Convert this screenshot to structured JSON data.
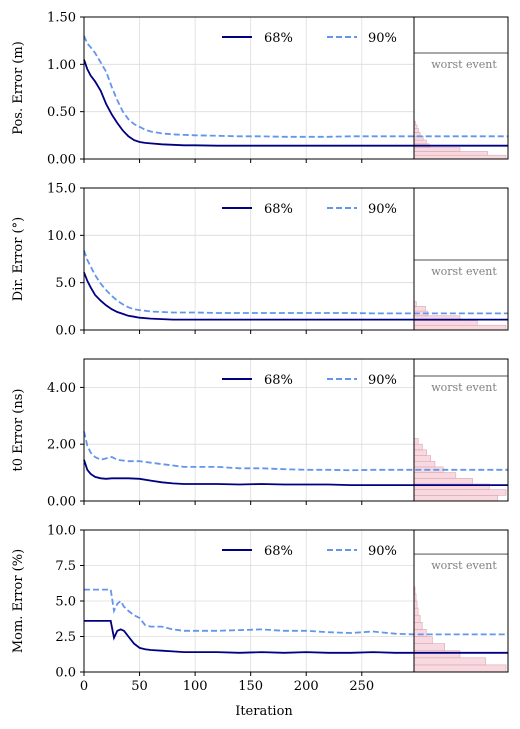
{
  "chart_data": [
    {
      "type": "line",
      "ylabel": "Pos. Error (m)",
      "xlabel": "",
      "xlim": [
        0,
        297
      ],
      "ylim": [
        0,
        1.5
      ],
      "yticks": [
        "0.00",
        "0.50",
        "1.00",
        "1.50"
      ],
      "xticks": [
        "0",
        "50",
        "100",
        "150",
        "200",
        "250"
      ],
      "grid": true,
      "legend": "top-center",
      "series": [
        {
          "name": "68%",
          "color": "#000080",
          "style": "solid",
          "x": [
            0,
            3,
            6,
            10,
            15,
            20,
            25,
            30,
            35,
            40,
            45,
            50,
            55,
            60,
            70,
            80,
            90,
            100,
            120,
            140,
            160,
            180,
            200,
            220,
            240,
            260,
            280,
            297
          ],
          "y": [
            1.05,
            0.95,
            0.88,
            0.82,
            0.72,
            0.58,
            0.47,
            0.38,
            0.3,
            0.24,
            0.2,
            0.18,
            0.17,
            0.165,
            0.155,
            0.15,
            0.145,
            0.145,
            0.14,
            0.14,
            0.14,
            0.14,
            0.14,
            0.14,
            0.14,
            0.14,
            0.14,
            0.14
          ]
        },
        {
          "name": "90%",
          "color": "#6495ED",
          "style": "dashed",
          "x": [
            0,
            3,
            6,
            10,
            15,
            20,
            25,
            30,
            35,
            40,
            45,
            50,
            55,
            60,
            70,
            80,
            90,
            100,
            120,
            140,
            160,
            180,
            200,
            220,
            240,
            260,
            280,
            297
          ],
          "y": [
            1.3,
            1.22,
            1.18,
            1.12,
            1.02,
            0.92,
            0.76,
            0.62,
            0.5,
            0.42,
            0.37,
            0.34,
            0.31,
            0.29,
            0.27,
            0.26,
            0.255,
            0.25,
            0.245,
            0.24,
            0.24,
            0.235,
            0.235,
            0.235,
            0.24,
            0.24,
            0.24,
            0.24
          ]
        }
      ],
      "worst_event_label": "worst event",
      "worst_event_value": 1.12,
      "histogram": {
        "bins": [
          0.0,
          0.04,
          0.08,
          0.12,
          0.16,
          0.2,
          0.24,
          0.28,
          0.32,
          0.36,
          0.4
        ],
        "counts": [
          60,
          48,
          30,
          10,
          8,
          6,
          4,
          3,
          2,
          1,
          1
        ]
      }
    },
    {
      "type": "line",
      "ylabel": "Dir. Error (°)",
      "xlabel": "",
      "xlim": [
        0,
        297
      ],
      "ylim": [
        0,
        15
      ],
      "yticks": [
        "0.0",
        "5.0",
        "10.0",
        "15.0"
      ],
      "xticks": [
        "0",
        "50",
        "100",
        "150",
        "200",
        "250"
      ],
      "grid": true,
      "legend": "top-center",
      "series": [
        {
          "name": "68%",
          "color": "#000080",
          "style": "solid",
          "x": [
            0,
            3,
            6,
            10,
            15,
            20,
            25,
            30,
            35,
            40,
            45,
            50,
            60,
            70,
            80,
            100,
            120,
            140,
            160,
            180,
            200,
            220,
            240,
            260,
            280,
            297
          ],
          "y": [
            6.1,
            5.2,
            4.5,
            3.7,
            3.1,
            2.6,
            2.2,
            1.9,
            1.7,
            1.5,
            1.4,
            1.3,
            1.2,
            1.15,
            1.1,
            1.1,
            1.1,
            1.1,
            1.1,
            1.1,
            1.1,
            1.1,
            1.1,
            1.1,
            1.1,
            1.1
          ]
        },
        {
          "name": "90%",
          "color": "#6495ED",
          "style": "dashed",
          "x": [
            0,
            3,
            6,
            10,
            15,
            20,
            25,
            30,
            35,
            40,
            45,
            50,
            60,
            70,
            80,
            100,
            120,
            140,
            160,
            180,
            200,
            220,
            240,
            260,
            280,
            297
          ],
          "y": [
            8.4,
            7.4,
            6.7,
            5.8,
            4.9,
            4.2,
            3.6,
            3.1,
            2.7,
            2.4,
            2.2,
            2.1,
            1.95,
            1.9,
            1.85,
            1.85,
            1.8,
            1.8,
            1.8,
            1.8,
            1.8,
            1.8,
            1.8,
            1.75,
            1.75,
            1.75
          ]
        }
      ],
      "worst_event_label": "worst event",
      "worst_event_value": 7.4,
      "histogram": {
        "bins": [
          0.0,
          0.5,
          1.0,
          1.5,
          2.0,
          2.5,
          3.0
        ],
        "counts": [
          80,
          55,
          40,
          12,
          10,
          2
        ]
      }
    },
    {
      "type": "line",
      "ylabel": "t0 Error (ns)",
      "xlabel": "",
      "xlim": [
        0,
        297
      ],
      "ylim": [
        0,
        5
      ],
      "yticks": [
        "0.00",
        "2.00",
        "4.00"
      ],
      "xticks": [
        "0",
        "50",
        "100",
        "150",
        "200",
        "250"
      ],
      "grid": true,
      "legend": "top-center",
      "series": [
        {
          "name": "68%",
          "color": "#000080",
          "style": "solid",
          "x": [
            0,
            3,
            6,
            10,
            15,
            20,
            25,
            30,
            40,
            50,
            60,
            70,
            80,
            90,
            100,
            120,
            140,
            160,
            180,
            200,
            220,
            240,
            260,
            280,
            297
          ],
          "y": [
            1.45,
            1.1,
            0.95,
            0.85,
            0.8,
            0.78,
            0.8,
            0.8,
            0.8,
            0.78,
            0.72,
            0.66,
            0.62,
            0.6,
            0.6,
            0.6,
            0.58,
            0.6,
            0.58,
            0.58,
            0.58,
            0.56,
            0.56,
            0.56,
            0.56
          ]
        },
        {
          "name": "90%",
          "color": "#6495ED",
          "style": "dashed",
          "x": [
            0,
            3,
            6,
            10,
            15,
            20,
            25,
            30,
            40,
            50,
            60,
            70,
            80,
            90,
            100,
            120,
            140,
            160,
            180,
            200,
            220,
            240,
            260,
            280,
            297
          ],
          "y": [
            2.45,
            1.95,
            1.7,
            1.55,
            1.45,
            1.5,
            1.55,
            1.45,
            1.4,
            1.4,
            1.35,
            1.3,
            1.25,
            1.2,
            1.2,
            1.2,
            1.15,
            1.15,
            1.12,
            1.1,
            1.1,
            1.08,
            1.1,
            1.1,
            1.1
          ]
        }
      ],
      "worst_event_label": "worst event",
      "worst_event_value": 4.4,
      "histogram": {
        "bins": [
          0.0,
          0.2,
          0.4,
          0.6,
          0.8,
          1.0,
          1.2,
          1.4,
          1.6,
          1.8,
          2.0,
          2.2
        ],
        "counts": [
          20,
          22,
          18,
          14,
          10,
          7,
          5,
          4,
          3,
          2,
          1
        ]
      }
    },
    {
      "type": "line",
      "ylabel": "Mom. Error (%)",
      "xlabel": "Iteration",
      "xlim": [
        0,
        297
      ],
      "ylim": [
        0,
        10
      ],
      "yticks": [
        "0.0",
        "2.5",
        "5.0",
        "7.5",
        "10.0"
      ],
      "xticks": [
        "0",
        "50",
        "100",
        "150",
        "200",
        "250"
      ],
      "grid": true,
      "legend": "top-center",
      "series": [
        {
          "name": "68%",
          "color": "#000080",
          "style": "solid",
          "x": [
            0,
            10,
            20,
            24,
            27,
            30,
            33,
            36,
            40,
            45,
            50,
            55,
            60,
            70,
            80,
            90,
            100,
            120,
            140,
            160,
            180,
            200,
            220,
            240,
            260,
            280,
            297
          ],
          "y": [
            3.6,
            3.6,
            3.6,
            3.6,
            2.4,
            2.9,
            3.0,
            2.9,
            2.5,
            2.0,
            1.7,
            1.6,
            1.55,
            1.5,
            1.45,
            1.4,
            1.4,
            1.4,
            1.35,
            1.4,
            1.35,
            1.4,
            1.35,
            1.35,
            1.4,
            1.35,
            1.35
          ]
        },
        {
          "name": "90%",
          "color": "#6495ED",
          "style": "dashed",
          "x": [
            0,
            10,
            20,
            24,
            27,
            30,
            33,
            36,
            40,
            45,
            50,
            55,
            60,
            70,
            80,
            90,
            100,
            120,
            140,
            160,
            180,
            200,
            220,
            240,
            260,
            280,
            297
          ],
          "y": [
            5.8,
            5.8,
            5.8,
            5.8,
            4.3,
            4.8,
            5.0,
            4.6,
            4.3,
            4.0,
            3.8,
            3.3,
            3.2,
            3.2,
            3.0,
            2.9,
            2.9,
            2.9,
            2.95,
            3.0,
            2.9,
            2.9,
            2.8,
            2.75,
            2.85,
            2.7,
            2.65
          ]
        }
      ],
      "worst_event_label": "worst event",
      "worst_event_value": 8.3,
      "histogram": {
        "bins": [
          0.0,
          0.5,
          1.0,
          1.5,
          2.0,
          2.5,
          3.0,
          3.5,
          4.0,
          4.5,
          5.0,
          5.5,
          6.0
        ],
        "counts": [
          90,
          70,
          45,
          30,
          18,
          12,
          8,
          6,
          4,
          3,
          2,
          1
        ]
      }
    }
  ]
}
